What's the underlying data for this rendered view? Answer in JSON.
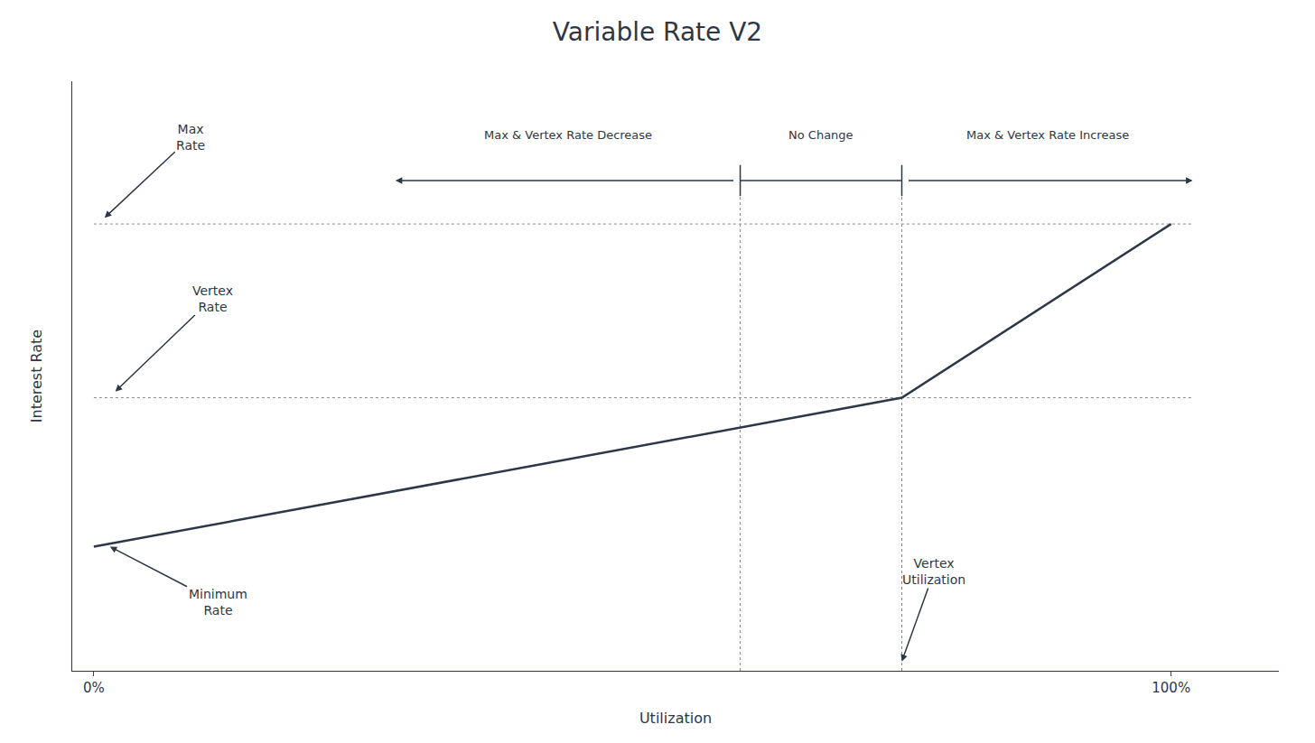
{
  "chart_data": {
    "type": "line",
    "title": "Variable Rate V2",
    "x_label": "Utilization",
    "y_label": "Interest Rate",
    "x": [
      0.0,
      0.75,
      1.0
    ],
    "values": [
      0.2,
      0.44,
      0.72
    ],
    "color": "#2d3748",
    "xlim": [
      -0.02,
      1.1
    ],
    "xticks": [
      {
        "value": 0,
        "label": "0%"
      },
      {
        "value": 1,
        "label": "100%"
      }
    ],
    "ylim": [
      0,
      0.95
    ],
    "yticks": [],
    "tick_labels": "x",
    "grid": false,
    "hlines": {
      "values": [
        0.72,
        0.44
      ],
      "color": "#888888",
      "line_style": "dotted"
    },
    "vlines": {
      "values": [
        0.6,
        0.75
      ],
      "color": "#888888",
      "line_style": "dotted"
    },
    "annotations": {
      "max_rate": "Max\nRate",
      "vertex_rate": "Vertex\nRate",
      "min_rate": "Minimum\nRate",
      "vertex_util": "Vertex\nUtilization",
      "decrease": "Max & Vertex Rate Decrease",
      "no_change": "No Change",
      "increase": "Max & Vertex Rate Increase"
    }
  }
}
